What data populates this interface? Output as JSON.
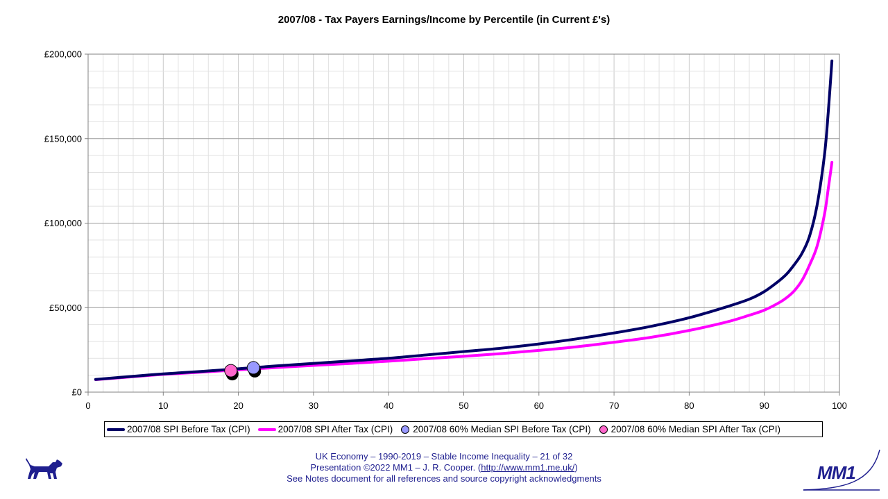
{
  "chart_data": {
    "type": "line",
    "title": "2007/08 - Tax Payers Earnings/Income by Percentile (in Current £'s)",
    "xlabel": "",
    "ylabel": "",
    "xlim": [
      0,
      100
    ],
    "ylim": [
      0,
      200000
    ],
    "x_ticks": [
      0,
      10,
      20,
      30,
      40,
      50,
      60,
      70,
      80,
      90,
      100
    ],
    "y_ticks": [
      0,
      50000,
      100000,
      150000,
      200000
    ],
    "y_tick_labels": [
      "£0",
      "£50,000",
      "£100,000",
      "£150,000",
      "£200,000"
    ],
    "grid": true,
    "legend_position": "bottom",
    "series": [
      {
        "name": "2007/08 SPI  Before Tax (CPI)",
        "color": "#000066",
        "style": "line",
        "x": [
          1,
          5,
          10,
          15,
          20,
          25,
          30,
          35,
          40,
          45,
          50,
          55,
          60,
          65,
          70,
          75,
          80,
          85,
          88,
          90,
          92,
          93,
          94,
          95,
          96,
          97,
          98,
          98.5,
          99
        ],
        "y": [
          7500,
          9000,
          10800,
          12200,
          13800,
          15500,
          17000,
          18500,
          20000,
          22000,
          24000,
          26000,
          28500,
          31500,
          35000,
          39000,
          44000,
          50500,
          55000,
          59500,
          66000,
          70000,
          75500,
          82000,
          92000,
          110000,
          140000,
          165000,
          196000
        ]
      },
      {
        "name": "2007/08 SPI After Tax (CPI)",
        "color": "#ff00ff",
        "style": "line",
        "x": [
          1,
          5,
          10,
          15,
          20,
          25,
          30,
          35,
          40,
          45,
          50,
          55,
          60,
          65,
          70,
          75,
          80,
          85,
          88,
          90,
          92,
          93,
          94,
          95,
          96,
          97,
          98,
          98.5,
          99
        ],
        "y": [
          7400,
          8800,
          10500,
          11800,
          13200,
          14500,
          15800,
          17000,
          18300,
          19800,
          21200,
          22800,
          24700,
          26800,
          29500,
          32500,
          36500,
          41500,
          45500,
          48500,
          53000,
          56000,
          60000,
          66000,
          75000,
          86000,
          105000,
          120000,
          136000
        ]
      },
      {
        "name": "2007/08 60% Median SPI Before Tax (CPI)",
        "color": "#9999ff",
        "style": "marker",
        "x": [
          22
        ],
        "y": [
          14400
        ]
      },
      {
        "name": "2007/08 60% Median SPI After Tax (CPI)",
        "color": "#ff66cc",
        "style": "marker",
        "x": [
          19
        ],
        "y": [
          12700
        ]
      }
    ]
  },
  "footer": {
    "line1": "UK Economy – 1990-2019 – Stable Income Inequality – 21 of 32",
    "line2_prefix": "Presentation ©2022 MM1 – J. R. Cooper. (",
    "line2_link": "http://www.mm1.me.uk/",
    "line2_suffix": ")",
    "line3": "See Notes document for all references and source copyright acknowledgments"
  },
  "logo": {
    "text": "MM1",
    "color": "#1f1f8f"
  }
}
